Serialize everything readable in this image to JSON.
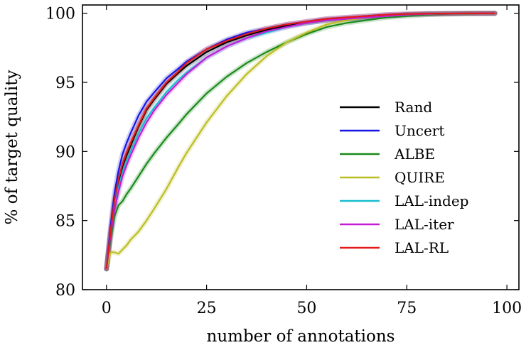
{
  "chart_data": {
    "type": "line",
    "title": "",
    "xlabel": "number of annotations",
    "ylabel": "% of target quality",
    "xlim": [
      -6,
      103
    ],
    "ylim": [
      80,
      100.6
    ],
    "xticks": [
      0,
      25,
      50,
      75,
      100
    ],
    "yticks": [
      80,
      85,
      90,
      95,
      100
    ],
    "legend_position": "lower-right",
    "grid": false,
    "x": [
      0,
      1,
      2,
      3,
      4,
      5,
      6,
      8,
      10,
      12,
      15,
      18,
      20,
      25,
      30,
      35,
      40,
      45,
      50,
      55,
      60,
      65,
      70,
      75,
      80,
      85,
      90,
      97
    ],
    "series": [
      {
        "name": "Rand",
        "color": "#000000",
        "values": [
          81.5,
          84.0,
          86.3,
          87.8,
          88.9,
          89.7,
          90.4,
          91.8,
          93.0,
          93.8,
          94.9,
          95.7,
          96.2,
          97.2,
          97.9,
          98.4,
          98.8,
          99.1,
          99.3,
          99.5,
          99.6,
          99.7,
          99.8,
          99.9,
          99.95,
          99.97,
          99.99,
          100.0
        ]
      },
      {
        "name": "Uncert",
        "color": "#1515e6",
        "values": [
          81.5,
          84.5,
          87.0,
          88.6,
          89.8,
          90.6,
          91.3,
          92.6,
          93.6,
          94.3,
          95.3,
          96.0,
          96.5,
          97.4,
          98.1,
          98.6,
          98.9,
          99.2,
          99.4,
          99.6,
          99.7,
          99.8,
          99.9,
          99.95,
          99.97,
          99.98,
          99.99,
          100.0
        ]
      },
      {
        "name": "ALBE",
        "color": "#1a8a1a",
        "values": [
          81.5,
          83.6,
          85.3,
          86.1,
          86.4,
          86.9,
          87.3,
          88.2,
          89.1,
          89.9,
          91.0,
          92.0,
          92.7,
          94.2,
          95.4,
          96.4,
          97.2,
          97.9,
          98.5,
          99.0,
          99.3,
          99.5,
          99.7,
          99.8,
          99.9,
          99.95,
          99.98,
          100.0
        ]
      },
      {
        "name": "QUIRE",
        "color": "#bcbd22",
        "values": [
          81.5,
          82.7,
          82.7,
          82.6,
          82.9,
          83.2,
          83.6,
          84.2,
          85.0,
          85.9,
          87.3,
          88.9,
          89.9,
          92.1,
          94.0,
          95.6,
          96.9,
          97.9,
          98.6,
          99.2,
          99.5,
          99.7,
          99.8,
          99.9,
          99.95,
          99.97,
          99.99,
          100.0
        ]
      },
      {
        "name": "LAL-indep",
        "color": "#17becf",
        "values": [
          81.5,
          84.0,
          86.0,
          87.4,
          88.5,
          89.3,
          90.0,
          91.3,
          92.4,
          93.2,
          94.3,
          95.2,
          95.7,
          96.8,
          97.6,
          98.2,
          98.6,
          99.0,
          99.3,
          99.5,
          99.6,
          99.7,
          99.8,
          99.9,
          99.95,
          99.97,
          99.99,
          100.0
        ]
      },
      {
        "name": "LAL-iter",
        "color": "#c51bd6",
        "values": [
          81.5,
          83.9,
          85.8,
          87.1,
          88.2,
          89.0,
          89.7,
          91.0,
          92.1,
          93.0,
          94.1,
          95.0,
          95.6,
          96.8,
          97.6,
          98.2,
          98.7,
          99.0,
          99.3,
          99.5,
          99.6,
          99.7,
          99.8,
          99.9,
          99.95,
          99.97,
          99.99,
          100.0
        ]
      },
      {
        "name": "LAL-RL",
        "color": "#e31a1c",
        "values": [
          81.5,
          84.2,
          86.5,
          88.0,
          89.1,
          89.9,
          90.6,
          91.9,
          93.1,
          93.9,
          95.0,
          95.8,
          96.4,
          97.4,
          98.0,
          98.5,
          98.9,
          99.2,
          99.4,
          99.6,
          99.7,
          99.8,
          99.9,
          99.95,
          99.97,
          99.98,
          99.99,
          100.0
        ]
      }
    ]
  }
}
